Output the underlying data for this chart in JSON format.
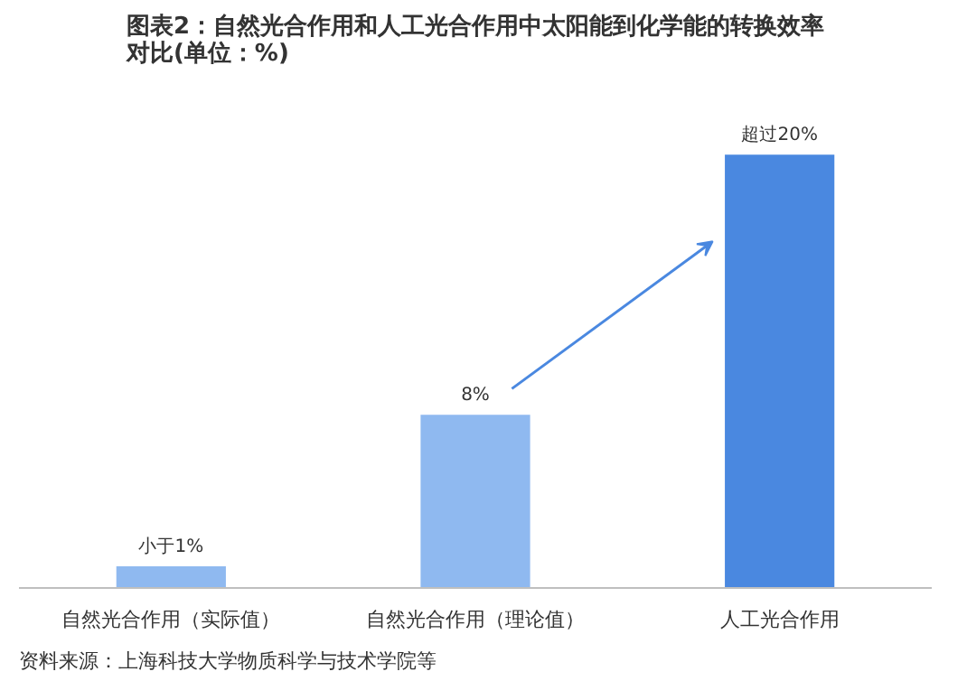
{
  "chart_data": {
    "type": "bar",
    "title": "图表2：自然光合作用和人工光合作用中太阳能到化学能的转换效率对比(单位：%)",
    "categories": [
      "自然光合作用（实际值）",
      "自然光合作用（理论值）",
      "人工光合作用"
    ],
    "values": [
      1,
      8,
      20
    ],
    "value_labels": [
      "小于1%",
      "8%",
      "超过20%"
    ],
    "colors": [
      "#8fb9f0",
      "#8fb9f0",
      "#4a88e0"
    ],
    "grid": false,
    "annotations": [
      "资料来源：上海科技大学物质科学与技术学院等"
    ]
  }
}
